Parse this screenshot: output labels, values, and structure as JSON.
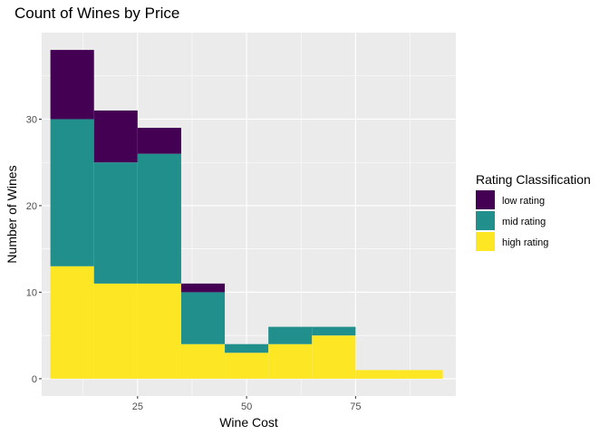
{
  "chart_data": {
    "type": "bar",
    "stacked": true,
    "histogram": true,
    "title": "Count of Wines by Price",
    "xlabel": "Wine Cost",
    "ylabel": "Number of Wines",
    "xlim": [
      3,
      98
    ],
    "ylim": [
      -2,
      40
    ],
    "xticks": [
      25,
      50,
      75
    ],
    "yticks": [
      0,
      10,
      20,
      30
    ],
    "x_minor_gridlines": [
      12.5,
      37.5,
      62.5,
      87.5
    ],
    "y_minor_gridlines": [
      5,
      15,
      25,
      35
    ],
    "grid": true,
    "bins": [
      {
        "start": 5,
        "end": 15
      },
      {
        "start": 15,
        "end": 25
      },
      {
        "start": 25,
        "end": 35
      },
      {
        "start": 35,
        "end": 45
      },
      {
        "start": 45,
        "end": 55
      },
      {
        "start": 55,
        "end": 65
      },
      {
        "start": 65,
        "end": 75
      },
      {
        "start": 75,
        "end": 85
      },
      {
        "start": 85,
        "end": 95
      }
    ],
    "series": [
      {
        "name": "high rating",
        "color": "#FDE725",
        "values": [
          13,
          11,
          11,
          4,
          3,
          4,
          5,
          1,
          1
        ]
      },
      {
        "name": "mid rating",
        "color": "#21908C",
        "values": [
          17,
          14,
          15,
          6,
          1,
          2,
          1,
          0,
          0
        ]
      },
      {
        "name": "low rating",
        "color": "#440154",
        "values": [
          8,
          6,
          3,
          1,
          0,
          0,
          0,
          0,
          0
        ]
      }
    ],
    "legend": {
      "title": "Rating Classification",
      "placement": "right",
      "entries": [
        {
          "label": "low rating",
          "color": "#440154"
        },
        {
          "label": "mid rating",
          "color": "#21908C"
        },
        {
          "label": "high rating",
          "color": "#FDE725"
        }
      ]
    },
    "panel_background": "#EBEBEB",
    "grid_color": "#FFFFFF"
  }
}
